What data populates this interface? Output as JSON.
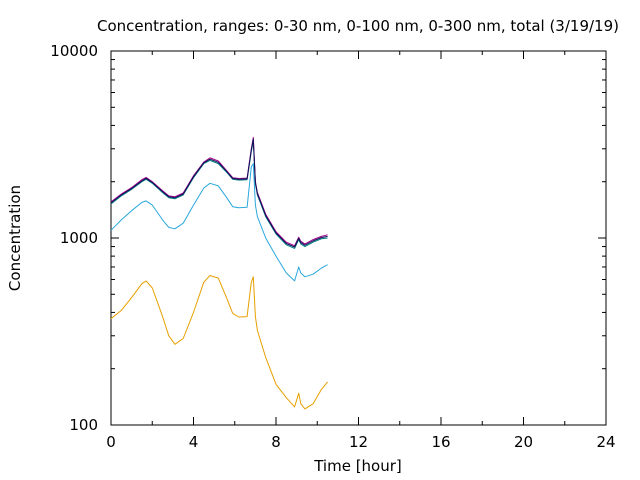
{
  "chart_data": {
    "type": "line",
    "title": "Concentration, ranges: 0-30 nm, 0-100 nm, 0-300 nm, total (3/19/19)",
    "xlabel": "Time [hour]",
    "ylabel": "Concentration",
    "xlim": [
      0,
      24
    ],
    "ylim": [
      100,
      10000
    ],
    "yscale": "log",
    "grid": false,
    "legend": "none",
    "xticks": [
      0,
      4,
      8,
      12,
      16,
      20,
      24
    ],
    "xtick_labels": [
      "0",
      "4",
      "8",
      "12",
      "16",
      "20",
      "24"
    ],
    "yticks": [
      100,
      1000,
      10000
    ],
    "ytick_labels": [
      "100",
      "1000",
      "10000"
    ],
    "x": [
      0,
      0.5,
      1,
      1.5,
      1.7,
      2,
      2.5,
      2.8,
      3.1,
      3.5,
      4,
      4.5,
      4.8,
      5.2,
      5.6,
      5.9,
      6.2,
      6.6,
      6.8,
      6.9,
      7,
      7.1,
      7.5,
      8,
      8.5,
      8.9,
      9.1,
      9.2,
      9.4,
      9.8,
      10.2,
      10.5
    ],
    "series": [
      {
        "color": "#e6a000",
        "values": [
          370,
          410,
          480,
          570,
          590,
          540,
          380,
          300,
          270,
          290,
          400,
          580,
          630,
          610,
          480,
          395,
          378,
          380,
          580,
          620,
          380,
          320,
          230,
          165,
          140,
          125,
          148,
          130,
          122,
          130,
          155,
          170
        ]
      },
      {
        "color": "#2aa7dc",
        "values": [
          1100,
          1250,
          1400,
          1550,
          1580,
          1500,
          1250,
          1140,
          1120,
          1200,
          1500,
          1850,
          1960,
          1900,
          1650,
          1470,
          1450,
          1460,
          2400,
          2500,
          1500,
          1300,
          1000,
          800,
          650,
          590,
          700,
          650,
          620,
          640,
          690,
          720
        ]
      },
      {
        "color": "#008080",
        "values": [
          1520,
          1680,
          1820,
          2000,
          2060,
          1960,
          1750,
          1640,
          1620,
          1700,
          2100,
          2500,
          2600,
          2500,
          2250,
          2060,
          2040,
          2050,
          2900,
          3300,
          1950,
          1700,
          1300,
          1050,
          920,
          880,
          980,
          930,
          900,
          950,
          990,
          1000
        ]
      },
      {
        "color": "#a0008c",
        "values": [
          1560,
          1720,
          1860,
          2050,
          2110,
          2000,
          1790,
          1680,
          1660,
          1740,
          2150,
          2550,
          2680,
          2580,
          2300,
          2100,
          2080,
          2090,
          3000,
          3450,
          2000,
          1750,
          1340,
          1080,
          950,
          910,
          1010,
          960,
          930,
          980,
          1020,
          1040
        ]
      },
      {
        "color": "#101058",
        "values": [
          1540,
          1700,
          1840,
          2020,
          2085,
          1980,
          1770,
          1660,
          1640,
          1720,
          2125,
          2525,
          2640,
          2540,
          2275,
          2080,
          2060,
          2070,
          2950,
          3380,
          1975,
          1725,
          1320,
          1065,
          935,
          895,
          995,
          945,
          915,
          965,
          1005,
          1020
        ]
      }
    ]
  }
}
